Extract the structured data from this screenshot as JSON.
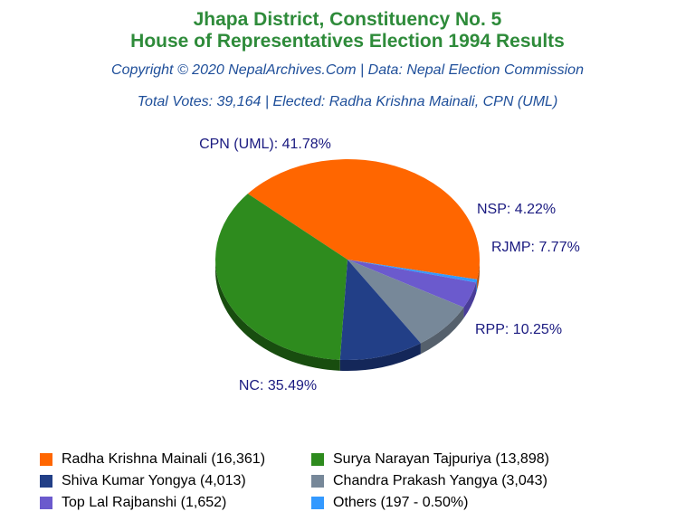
{
  "header": {
    "title_line1": "Jhapa District, Constituency No. 5",
    "title_line2": "House of Representatives Election 1994 Results",
    "copyright": "Copyright © 2020 NepalArchives.Com | Data: Nepal Election Commission",
    "summary": "Total Votes: 39,164 | Elected: Radha Krishna Mainali, CPN (UML)"
  },
  "chart_data": {
    "type": "pie",
    "slices": [
      {
        "label": "CPN (UML): 41.78%",
        "value": 41.78,
        "color": "#ff6600",
        "side": "#b84a00"
      },
      {
        "label": "",
        "value": 0.5,
        "color": "#3399ff",
        "side": "#1f6fc0"
      },
      {
        "label": "NSP: 4.22%",
        "value": 4.22,
        "color": "#6b5acd",
        "side": "#4a3d99"
      },
      {
        "label": "RJMP: 7.77%",
        "value": 7.77,
        "color": "#778899",
        "side": "#55606c"
      },
      {
        "label": "RPP: 10.25%",
        "value": 10.25,
        "color": "#223f87",
        "side": "#142759"
      },
      {
        "label": "NC: 35.49%",
        "value": 35.49,
        "color": "#2e8b1e",
        "side": "#184d0f"
      }
    ]
  },
  "legend": [
    {
      "text": "Radha Krishna Mainali (16,361)",
      "color": "#ff6600"
    },
    {
      "text": "Surya Narayan Tajpuriya (13,898)",
      "color": "#2e8b1e"
    },
    {
      "text": "Shiva Kumar Yongya (4,013)",
      "color": "#223f87"
    },
    {
      "text": "Chandra Prakash Yangya (3,043)",
      "color": "#778899"
    },
    {
      "text": "Top Lal Rajbanshi (1,652)",
      "color": "#6b5acd"
    },
    {
      "text": "Others (197 - 0.50%)",
      "color": "#3399ff"
    }
  ]
}
